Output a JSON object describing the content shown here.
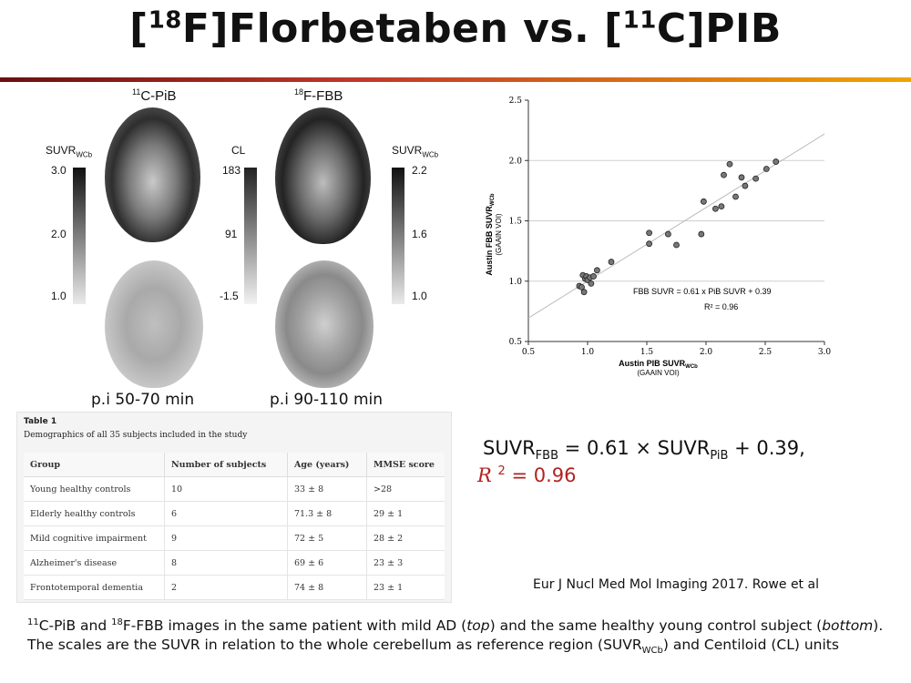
{
  "title": {
    "sup1": "18",
    "part1": "F]Florbetaben vs. [",
    "sup2": "11",
    "part2": "C]PIB",
    "open": "["
  },
  "images": {
    "pib_label_sup": "11",
    "pib_label": "C-PiB",
    "fbb_label_sup": "18",
    "fbb_label": "F-FBB",
    "left_scale": {
      "label": "SUVR",
      "sub": "WCb",
      "ticks": [
        "3.0",
        "2.0",
        "1.0"
      ]
    },
    "cl_scale": {
      "label": "CL",
      "ticks": [
        "183",
        "91",
        "-1.5"
      ]
    },
    "right_scale": {
      "label": "SUVR",
      "sub": "WCb",
      "ticks": [
        "2.2",
        "1.6",
        "1.0"
      ]
    },
    "pib_time": "p.i 50-70 min",
    "fbb_time": "p.i 90-110 min"
  },
  "table": {
    "caption_title": "Table 1",
    "caption": "Demographics of all 35 subjects included in the study",
    "headers": [
      "Group",
      "Number of subjects",
      "Age (years)",
      "MMSE score"
    ],
    "rows": [
      [
        "Young healthy controls",
        "10",
        "33 ± 8",
        ">28"
      ],
      [
        "Elderly healthy controls",
        "6",
        "71.3 ± 8",
        "29 ± 1"
      ],
      [
        "Mild cognitive impairment",
        "9",
        "72 ± 5",
        "28 ± 2"
      ],
      [
        "Alzheimer's disease",
        "8",
        "69 ± 6",
        "23 ± 3"
      ],
      [
        "Frontotemporal dementia",
        "2",
        "74 ± 8",
        "23 ± 1"
      ]
    ]
  },
  "chart_data": {
    "type": "scatter",
    "xlabel": "Austin PIB SUVR",
    "xlabel_sub": "WCb",
    "xlabel2": "(GAAIN VOI)",
    "ylabel": "Austin FBB SUVR",
    "ylabel_sub": "WCb",
    "ylabel2": "(GAAIN VOI)",
    "xlim": [
      0.5,
      3.0
    ],
    "ylim": [
      0.5,
      2.5
    ],
    "xticks": [
      "0.5",
      "1.0",
      "1.5",
      "2.0",
      "2.5",
      "3.0"
    ],
    "yticks": [
      "0.5",
      "1.0",
      "1.5",
      "2.0",
      "2.5"
    ],
    "fit": {
      "slope": 0.61,
      "intercept": 0.39
    },
    "annotation": [
      "FBB SUVR = 0.61 x PiB SUVR + 0.39",
      "R² = 0.96"
    ],
    "points": [
      [
        0.93,
        0.96
      ],
      [
        0.95,
        0.95
      ],
      [
        0.96,
        1.05
      ],
      [
        0.97,
        0.91
      ],
      [
        0.98,
        1.02
      ],
      [
        0.99,
        1.04
      ],
      [
        1.0,
        1.01
      ],
      [
        1.02,
        1.03
      ],
      [
        1.03,
        0.98
      ],
      [
        1.05,
        1.04
      ],
      [
        1.08,
        1.09
      ],
      [
        1.2,
        1.16
      ],
      [
        1.52,
        1.4
      ],
      [
        1.52,
        1.31
      ],
      [
        1.68,
        1.39
      ],
      [
        1.75,
        1.3
      ],
      [
        1.96,
        1.39
      ],
      [
        1.98,
        1.66
      ],
      [
        2.08,
        1.6
      ],
      [
        2.13,
        1.62
      ],
      [
        2.15,
        1.88
      ],
      [
        2.2,
        1.97
      ],
      [
        2.25,
        1.7
      ],
      [
        2.3,
        1.86
      ],
      [
        2.33,
        1.79
      ],
      [
        2.42,
        1.85
      ],
      [
        2.51,
        1.93
      ],
      [
        2.59,
        1.99
      ]
    ]
  },
  "equation": {
    "lhs": "SUVR",
    "lhs_sub": "FBB",
    "mid": " = 0.61 × SUVR",
    "mid_sub": "PiB",
    "rhs": " + 0.39,",
    "r_label": "R",
    "r_sup": "2",
    "r_rest": " = 0.96"
  },
  "citation": "Eur J Nucl Med Mol Imaging 2017. Rowe et al",
  "caption": {
    "s1": "11",
    "t1": "C-PiB and ",
    "s2": "18",
    "t2": "F-FBB images in the same patient with mild AD (",
    "top": "top",
    "t3": ") and the same healthy young control subject (",
    "bottom": "bottom",
    "t4": "). The scales are the SUVR in relation to the whole cerebellum as reference region (SUVR",
    "sub": "WCb",
    "t5": ") and Centiloid (CL) units"
  }
}
